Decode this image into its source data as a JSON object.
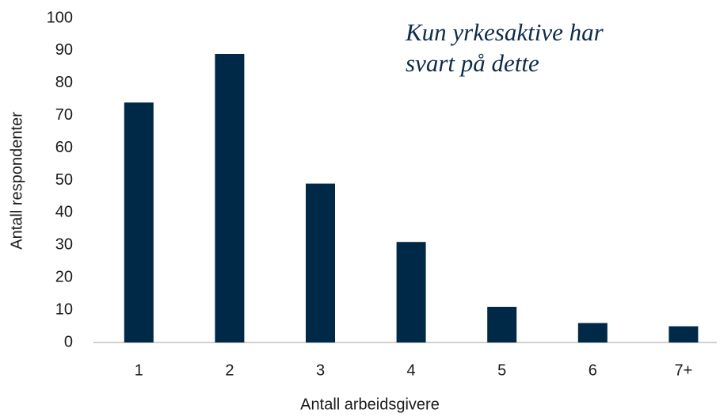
{
  "chart_data": {
    "type": "bar",
    "annotation": [
      "Kun yrkesaktive har",
      "svart på dette"
    ],
    "xlabel": "Antall arbeidsgivere",
    "ylabel": "Antall respondenter",
    "categories": [
      "1",
      "2",
      "3",
      "4",
      "5",
      "6",
      "7+"
    ],
    "values": [
      74,
      89,
      49,
      31,
      11,
      6,
      5
    ],
    "color": "#002847",
    "ylim": [
      0,
      100
    ],
    "yticks": [
      0,
      10,
      20,
      30,
      40,
      50,
      60,
      70,
      80,
      90,
      100
    ],
    "grid": false
  }
}
